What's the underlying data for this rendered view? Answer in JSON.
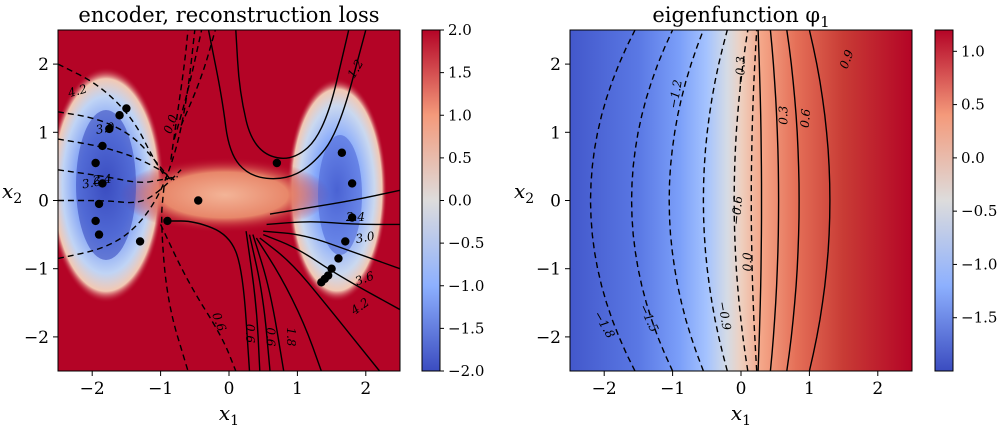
{
  "figure": {
    "panels": [
      {
        "title": "encoder, reconstruction loss",
        "xlabel": "x",
        "xlabel_sub": "1",
        "ylabel": "x",
        "ylabel_sub": "2",
        "xticks": [
          "−2",
          "−1",
          "0",
          "1",
          "2"
        ],
        "yticks": [
          "2",
          "1",
          "0",
          "−1",
          "−2"
        ],
        "colorbar_ticks": [
          "2.0",
          "1.5",
          "1.0",
          "0.5",
          "0.0",
          "−0.5",
          "−1.0",
          "−1.5",
          "−2.0"
        ],
        "contour_labels": [
          "4.2",
          "3.6",
          "3.0",
          "2.4",
          "0.0",
          "1.2",
          "2.4",
          "3.0",
          "3.6",
          "4.2",
          "0.6",
          "0.6",
          "1.8",
          "0.6"
        ]
      },
      {
        "title": "eigenfunction φ",
        "title_sub": "1",
        "xlabel": "x",
        "xlabel_sub": "1",
        "ylabel": "x",
        "ylabel_sub": "2",
        "xticks": [
          "−2",
          "−1",
          "0",
          "1",
          "2"
        ],
        "yticks": [
          "2",
          "1",
          "0",
          "−1",
          "−2"
        ],
        "colorbar_ticks": [
          "1.0",
          "0.5",
          "0.0",
          "−0.5",
          "−1.0",
          "−1.5"
        ],
        "contour_labels": [
          "−1.8",
          "−1.5",
          "−1.2",
          "−0.9",
          "−0.6",
          "−0.3",
          "0.0",
          "0.3",
          "0.6",
          "0.9"
        ]
      }
    ]
  },
  "chart_data": [
    {
      "type": "heatmap",
      "title": "encoder, reconstruction loss",
      "xlabel": "x1",
      "ylabel": "x2",
      "xlim": [
        -2.5,
        2.5
      ],
      "ylim": [
        -2.5,
        2.5
      ],
      "colorbar": {
        "min": -2.0,
        "max": 2.0,
        "colormap": "coolwarm"
      },
      "contour_levels": [
        -4.2,
        -3.6,
        -3.0,
        -2.4,
        -1.8,
        -1.2,
        -0.6,
        0.0,
        0.6,
        1.2,
        1.8,
        2.4,
        3.0,
        3.6,
        4.2
      ],
      "points": [
        [
          -1.95,
          0.55
        ],
        [
          -1.85,
          0.8
        ],
        [
          -1.75,
          1.05
        ],
        [
          -1.6,
          1.25
        ],
        [
          -1.5,
          1.35
        ],
        [
          -1.85,
          0.25
        ],
        [
          -1.9,
          -0.05
        ],
        [
          -1.9,
          -0.5
        ],
        [
          -1.95,
          -0.3
        ],
        [
          -1.3,
          -0.6
        ],
        [
          -0.9,
          -0.3
        ],
        [
          -0.45,
          0.0
        ],
        [
          0.7,
          0.55
        ],
        [
          1.65,
          0.7
        ],
        [
          1.8,
          0.25
        ],
        [
          1.8,
          -0.25
        ],
        [
          1.7,
          -0.6
        ],
        [
          1.6,
          -0.85
        ],
        [
          1.5,
          -1.0
        ],
        [
          1.45,
          -1.1
        ],
        [
          1.4,
          -1.15
        ],
        [
          1.35,
          -1.2
        ]
      ]
    },
    {
      "type": "heatmap",
      "title": "eigenfunction φ1",
      "xlabel": "x1",
      "ylabel": "x2",
      "xlim": [
        -2.5,
        2.5
      ],
      "ylim": [
        -2.5,
        2.5
      ],
      "colorbar": {
        "min": -2.0,
        "max": 1.2,
        "colormap": "coolwarm"
      },
      "contour_levels": [
        -1.8,
        -1.5,
        -1.2,
        -0.9,
        -0.6,
        -0.3,
        0.0,
        0.3,
        0.6,
        0.9
      ]
    }
  ]
}
